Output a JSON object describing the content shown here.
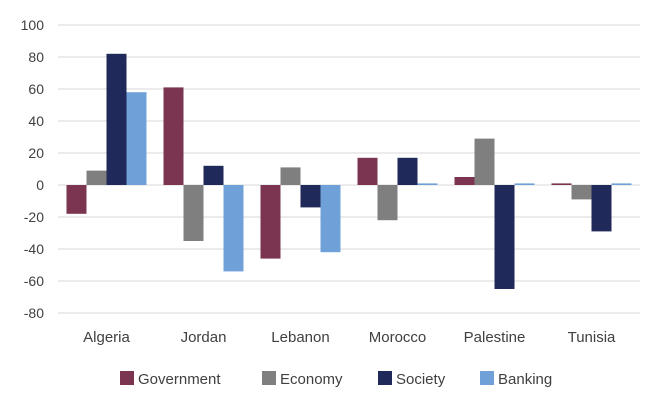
{
  "chart_data": {
    "type": "bar",
    "title": "",
    "xlabel": "",
    "ylabel": "",
    "categories": [
      "Algeria",
      "Jordan",
      "Lebanon",
      "Morocco",
      "Palestine",
      "Tunisia"
    ],
    "series": [
      {
        "name": "Government",
        "color": "#7b3550",
        "values": [
          -18,
          61,
          -46,
          17,
          5,
          1
        ]
      },
      {
        "name": "Economy",
        "color": "#7f7f7f",
        "values": [
          9,
          -35,
          11,
          -22,
          29,
          -9
        ]
      },
      {
        "name": "Society",
        "color": "#1f2a5a",
        "values": [
          82,
          12,
          -14,
          17,
          -65,
          -29
        ]
      },
      {
        "name": "Banking",
        "color": "#6fa0d8",
        "values": [
          58,
          -54,
          -42,
          1,
          1,
          1
        ]
      }
    ],
    "ylim": [
      -80,
      100
    ],
    "yticks": [
      -80,
      -60,
      -40,
      -20,
      0,
      20,
      40,
      60,
      80,
      100
    ],
    "grid": true,
    "legend_position": "bottom"
  }
}
